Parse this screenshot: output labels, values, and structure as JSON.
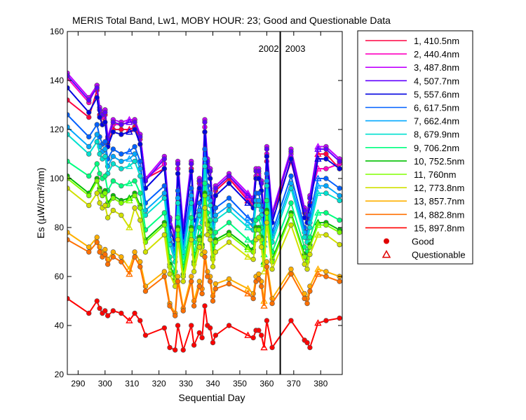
{
  "chart_data": {
    "type": "line",
    "title": "MERIS Total Band,  Lw1, MOBY HOUR: 23;  Good and Questionable Data",
    "xlabel": "Sequential Day",
    "ylabel": "Es (µW/cm²/nm)",
    "xlim": [
      286,
      388
    ],
    "ylim": [
      20,
      160
    ],
    "xticks": [
      290,
      300,
      310,
      320,
      330,
      340,
      350,
      360,
      370,
      380
    ],
    "yticks": [
      20,
      40,
      60,
      80,
      100,
      120,
      140,
      160
    ],
    "grid": false,
    "legend_position": "right",
    "year_divider": {
      "x": 365,
      "left_label": "2002",
      "right_label": "2003"
    },
    "x": [
      286,
      294,
      297,
      298,
      299,
      300,
      301,
      303,
      306,
      309,
      311,
      313,
      315,
      322,
      324,
      326,
      327,
      329,
      332,
      333,
      335,
      336,
      337,
      338,
      339,
      340,
      341,
      346,
      353,
      355,
      356,
      357,
      358,
      359,
      360,
      362,
      369,
      374,
      375,
      376,
      379,
      382,
      387
    ],
    "questionable_indices": [
      9,
      28,
      33,
      40
    ],
    "series": [
      {
        "name": "1, 410.5nm",
        "color": "#ff0040",
        "values": [
          132,
          125,
          136,
          126,
          122,
          126,
          114,
          120,
          120,
          120,
          121,
          116,
          100,
          104,
          84,
          75,
          104,
          80,
          104,
          86,
          98,
          93,
          119,
          106,
          103,
          89,
          95,
          100,
          91,
          89,
          100,
          101,
          98,
          84,
          107,
          85,
          107,
          86,
          84,
          90,
          110,
          110,
          104
        ]
      },
      {
        "name": "2, 440.4nm",
        "color": "#ff00c0",
        "values": [
          141,
          131,
          138,
          128,
          125,
          128,
          116,
          122,
          122,
          123,
          124,
          118,
          100,
          106,
          84,
          76,
          104,
          80,
          106,
          87,
          99,
          94,
          121,
          107,
          104,
          89,
          96,
          101,
          92,
          90,
          101,
          102,
          99,
          85,
          110,
          86,
          110,
          87,
          85,
          92,
          104,
          104,
          106
        ]
      },
      {
        "name": "3, 487.8nm",
        "color": "#c000ff",
        "values": [
          143,
          133,
          138,
          129,
          127,
          128,
          117,
          124,
          123,
          124,
          124,
          118,
          100,
          109,
          84,
          77,
          107,
          80,
          107,
          87,
          100,
          95,
          124,
          108,
          104,
          89,
          97,
          102,
          94,
          92,
          104,
          104,
          99,
          85,
          113,
          86,
          112,
          88,
          86,
          93,
          113,
          113,
          108
        ]
      },
      {
        "name": "4, 507.7nm",
        "color": "#6000ff",
        "values": [
          142,
          132,
          137,
          128,
          126,
          127,
          116,
          123,
          122,
          123,
          123,
          117,
          99,
          108,
          83,
          76,
          106,
          79,
          106,
          86,
          99,
          94,
          123,
          107,
          103,
          88,
          96,
          101,
          93,
          91,
          103,
          103,
          98,
          84,
          112,
          85,
          111,
          87,
          85,
          92,
          112,
          112,
          107
        ]
      },
      {
        "name": "5, 557.6nm",
        "color": "#0000e0",
        "values": [
          137,
          127,
          133,
          125,
          122,
          123,
          113,
          119,
          118,
          119,
          120,
          114,
          96,
          104,
          80,
          73,
          102,
          76,
          103,
          83,
          96,
          91,
          119,
          103,
          100,
          85,
          93,
          98,
          90,
          88,
          100,
          100,
          95,
          81,
          109,
          82,
          108,
          84,
          82,
          89,
          108,
          108,
          104
        ]
      },
      {
        "name": "6, 617.5nm",
        "color": "#0060ff",
        "values": [
          126,
          117,
          122,
          117,
          114,
          115,
          108,
          112,
          110,
          111,
          113,
          107,
          90,
          97,
          77,
          70,
          95,
          72,
          96,
          78,
          90,
          86,
          112,
          97,
          94,
          80,
          88,
          92,
          84,
          83,
          94,
          94,
          89,
          77,
          102,
          78,
          101,
          80,
          78,
          85,
          100,
          100,
          96
        ]
      },
      {
        "name": "7, 662.4nm",
        "color": "#00a8ff",
        "values": [
          121,
          113,
          118,
          113,
          111,
          112,
          105,
          109,
          107,
          108,
          110,
          104,
          87,
          94,
          75,
          68,
          92,
          70,
          93,
          76,
          87,
          84,
          108,
          94,
          91,
          78,
          85,
          89,
          82,
          81,
          91,
          91,
          87,
          75,
          99,
          76,
          98,
          78,
          76,
          82,
          97,
          97,
          93
        ]
      },
      {
        "name": "8, 679.9nm",
        "color": "#00e0d0",
        "values": [
          118,
          110,
          115,
          110,
          108,
          109,
          102,
          106,
          104,
          105,
          107,
          101,
          85,
          92,
          73,
          66,
          90,
          68,
          90,
          74,
          85,
          82,
          105,
          92,
          89,
          76,
          83,
          87,
          80,
          79,
          89,
          89,
          85,
          73,
          97,
          74,
          96,
          76,
          74,
          80,
          94,
          94,
          91
        ]
      },
      {
        "name": "9, 706.2nm",
        "color": "#00ff80",
        "values": [
          107,
          101,
          106,
          102,
          100,
          101,
          95,
          99,
          97,
          98,
          99,
          94,
          79,
          86,
          68,
          62,
          84,
          64,
          84,
          69,
          80,
          77,
          98,
          86,
          83,
          71,
          78,
          82,
          75,
          74,
          83,
          84,
          80,
          69,
          91,
          70,
          90,
          72,
          70,
          76,
          86,
          86,
          83
        ]
      },
      {
        "name": "10, 752.5nm",
        "color": "#00c000",
        "values": [
          101,
          94,
          100,
          96,
          94,
          95,
          90,
          93,
          91,
          92,
          94,
          89,
          75,
          82,
          65,
          59,
          80,
          61,
          80,
          66,
          76,
          73,
          94,
          82,
          79,
          68,
          75,
          78,
          72,
          71,
          80,
          80,
          76,
          66,
          87,
          67,
          86,
          69,
          67,
          73,
          82,
          82,
          79
        ]
      },
      {
        "name": "11,   760nm",
        "color": "#80ff00",
        "values": [
          100,
          93,
          99,
          95,
          93,
          94,
          89,
          92,
          90,
          91,
          93,
          88,
          74,
          81,
          64,
          58,
          79,
          60,
          79,
          65,
          75,
          72,
          93,
          81,
          78,
          67,
          74,
          77,
          71,
          70,
          79,
          79,
          75,
          65,
          86,
          66,
          85,
          68,
          66,
          72,
          81,
          81,
          78
        ]
      },
      {
        "name": "12, 773.8nm",
        "color": "#d0e000",
        "values": [
          96,
          89,
          94,
          90,
          88,
          89,
          84,
          87,
          85,
          80,
          88,
          83,
          70,
          77,
          61,
          56,
          75,
          58,
          75,
          62,
          72,
          69,
          88,
          77,
          75,
          64,
          70,
          74,
          68,
          67,
          75,
          76,
          72,
          62,
          82,
          63,
          81,
          65,
          63,
          69,
          77,
          77,
          73
        ]
      },
      {
        "name": "13, 857.7nm",
        "color": "#ffb000",
        "values": [
          78,
          72,
          76,
          72,
          70,
          71,
          67,
          70,
          68,
          63,
          70,
          66,
          56,
          62,
          49,
          45,
          60,
          47,
          60,
          50,
          58,
          55,
          70,
          62,
          60,
          52,
          57,
          59,
          55,
          53,
          60,
          61,
          58,
          50,
          66,
          51,
          63,
          53,
          51,
          56,
          63,
          62,
          60
        ]
      },
      {
        "name": "14, 882.8nm",
        "color": "#ff7000",
        "values": [
          75,
          70,
          74,
          70,
          68,
          69,
          65,
          68,
          66,
          61,
          68,
          64,
          54,
          60,
          48,
          44,
          58,
          46,
          58,
          48,
          56,
          53,
          68,
          60,
          58,
          50,
          55,
          57,
          53,
          51,
          58,
          59,
          56,
          48,
          64,
          49,
          61,
          51,
          49,
          54,
          61,
          60,
          58
        ]
      },
      {
        "name": "15, 897.8nm",
        "color": "#ff0000",
        "values": [
          51,
          45,
          50,
          47,
          45,
          46,
          44,
          46,
          45,
          42,
          45,
          42,
          36,
          39,
          31,
          30,
          40,
          30,
          40,
          32,
          37,
          35,
          48,
          40,
          39,
          33,
          36,
          40,
          36,
          35,
          38,
          38,
          36,
          31,
          42,
          31,
          42,
          34,
          33,
          31,
          41,
          42,
          43
        ]
      }
    ],
    "legend_markers": [
      {
        "label": "Good",
        "symbol": "filled-circle",
        "color": "#e00000"
      },
      {
        "label": "Questionable",
        "symbol": "open-triangle",
        "color": "#e00000"
      }
    ]
  }
}
